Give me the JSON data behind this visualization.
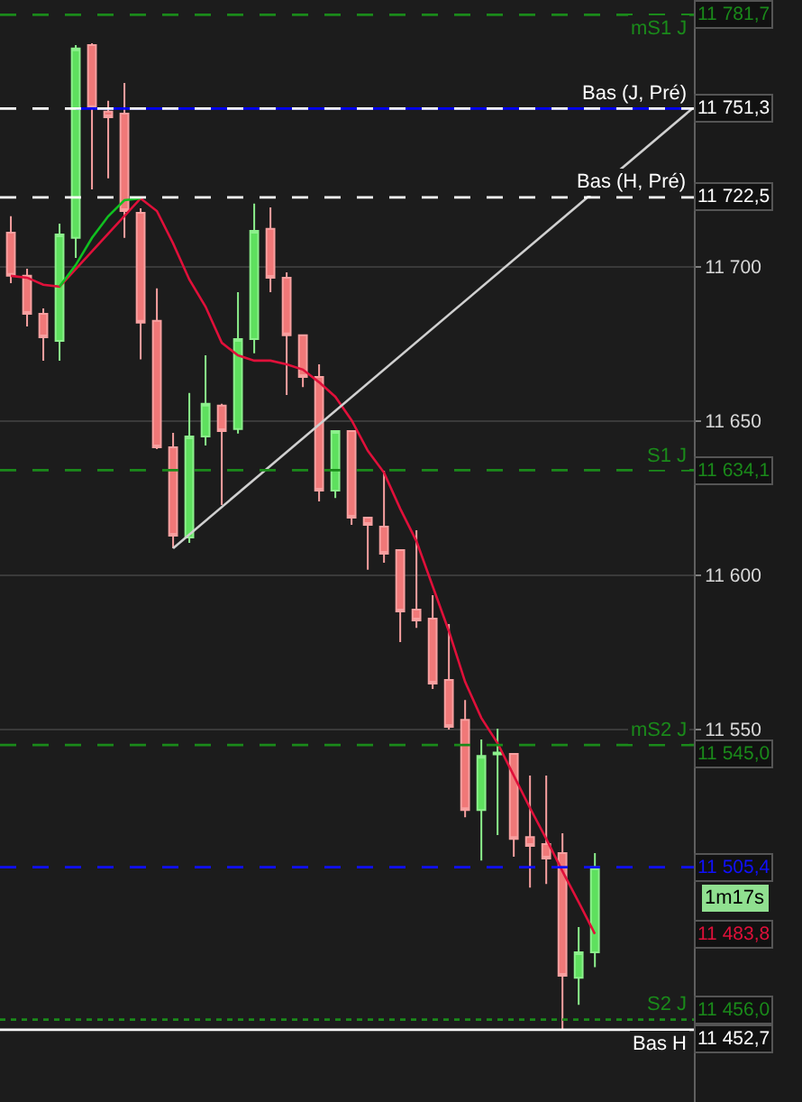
{
  "chart_data": {
    "type": "candlestick",
    "categories": [
      null,
      null,
      null,
      null,
      null,
      null,
      null,
      null,
      null,
      null,
      null,
      null,
      null,
      null,
      null,
      null,
      null,
      null,
      null,
      null,
      null,
      null,
      null,
      null,
      null,
      null,
      null,
      null,
      null,
      null,
      null,
      null,
      null,
      null,
      null,
      null,
      null,
      null,
      null,
      null,
      null,
      null,
      null
    ],
    "ohlc": [
      [
        11711.1,
        11716.4,
        11694.7,
        11697.1
      ],
      [
        11697.1,
        11699.4,
        11680.7,
        11684.8
      ],
      [
        11684.8,
        11686.5,
        11669.6,
        11677.2
      ],
      [
        11676.0,
        11714.0,
        11669.6,
        11710.5
      ],
      [
        11709.4,
        11771.9,
        11702.9,
        11770.8
      ],
      [
        11771.9,
        11772.5,
        11725.1,
        11751.5
      ],
      [
        11750.3,
        11753.8,
        11728.7,
        11748.5
      ],
      [
        11749.7,
        11759.6,
        11709.4,
        11718.1
      ],
      [
        11717.5,
        11719.0,
        11670.0,
        11681.9
      ],
      [
        11682.5,
        11693.0,
        11640.9,
        11641.5
      ],
      [
        11641.5,
        11646.2,
        11608.8,
        11612.9
      ],
      [
        11612.3,
        11659.1,
        11610.5,
        11645.0
      ],
      [
        11645.0,
        11671.3,
        11642.1,
        11655.6
      ],
      [
        11655.0,
        11655.6,
        11622.8,
        11646.8
      ],
      [
        11647.4,
        11691.8,
        11646.0,
        11676.6
      ],
      [
        11676.6,
        11720.5,
        11672.0,
        11711.7
      ],
      [
        11712.3,
        11719.3,
        11691.8,
        11696.5
      ],
      [
        11696.5,
        11698.2,
        11658.5,
        11677.8
      ],
      [
        11677.8,
        11678.0,
        11661.0,
        11664.3
      ],
      [
        11664.3,
        11668.4,
        11624.0,
        11627.5
      ],
      [
        11627.5,
        11646.8,
        11625.1,
        11646.8
      ],
      [
        11646.8,
        11647.0,
        11616.4,
        11618.7
      ],
      [
        11618.7,
        11618.7,
        11601.8,
        11616.4
      ],
      [
        11615.8,
        11633.9,
        11604.1,
        11607.0
      ],
      [
        11608.2,
        11608.2,
        11578.4,
        11588.3
      ],
      [
        11588.9,
        11614.6,
        11583.0,
        11585.4
      ],
      [
        11586.0,
        11593.6,
        11563.2,
        11564.9
      ],
      [
        11566.1,
        11584.2,
        11550.0,
        11550.9
      ],
      [
        11553.2,
        11559.6,
        11521.6,
        11523.9
      ],
      [
        11523.9,
        11546.8,
        11507.6,
        11541.5
      ],
      [
        11542.0,
        11550.3,
        11515.8,
        11542.6
      ],
      [
        11542.1,
        11542.1,
        11508.8,
        11514.6
      ],
      [
        11515.2,
        11535.1,
        11498.8,
        11512.3
      ],
      [
        11512.9,
        11535.1,
        11500.0,
        11508.2
      ],
      [
        11510.0,
        11516.4,
        11452.7,
        11470.2
      ],
      [
        11469.6,
        11486.0,
        11460.8,
        11477.8
      ],
      [
        11477.8,
        11510.0,
        11473.0,
        11505.4
      ],
      null,
      null,
      null,
      null,
      null,
      null
    ],
    "series": [
      {
        "type": "line",
        "color": "#e0103a",
        "values": [
          11697.1,
          11696.5,
          11694.2,
          11693.6,
          null,
          null,
          null,
          null,
          11722.2,
          11718.1,
          11707.6,
          11695.9,
          11687.1,
          11675.4,
          11671.3,
          11669.6,
          11669.6,
          11668.4,
          11666.7,
          11662.6,
          11657.9,
          11650.3,
          11640.4,
          11633.3,
          11621.6,
          11611.1,
          11596.5,
          11581.9,
          11565.5,
          11553.8,
          11545.6,
          11535.1,
          11524.6,
          11514.6,
          11504.1,
          11494.1,
          11483.8,
          null,
          null,
          null,
          null,
          null,
          null
        ]
      },
      {
        "type": "line",
        "color": "#10c020",
        "values": [
          null,
          null,
          null,
          11693.6,
          11700.6,
          11709.4,
          11716.4,
          11721.6,
          11722.2,
          null,
          null,
          null,
          null,
          null,
          null,
          null,
          null,
          null,
          null,
          null,
          null,
          null,
          null,
          null,
          null,
          null,
          null,
          null,
          null,
          null,
          null,
          null,
          null,
          null,
          null,
          null,
          null,
          null,
          null,
          null,
          null,
          null,
          null
        ]
      },
      {
        "type": "line",
        "color": "#0000ff",
        "values": [
          null,
          null,
          null,
          null,
          11751.3,
          11751.3,
          11751.3,
          11751.3,
          11751.3,
          11751.3,
          11751.3,
          11751.3,
          11751.3,
          11751.3,
          11751.3,
          11751.3,
          11751.3,
          11751.3,
          11751.3,
          11751.3,
          11751.3,
          11751.3,
          11751.3,
          11751.3,
          11751.3,
          11751.3,
          11751.3,
          11751.3,
          11751.3,
          11751.3,
          11751.3,
          11751.3,
          11751.3,
          11751.3,
          11751.3,
          11751.3,
          11751.3,
          11751.3,
          11751.3,
          11751.3,
          11751.3,
          11751.3,
          11751.3
        ]
      },
      {
        "type": "line",
        "color": "#d0d0d0",
        "values": [
          null,
          null,
          null,
          null,
          null,
          null,
          null,
          null,
          null,
          null,
          11608.8,
          null,
          null,
          null,
          null,
          null,
          null,
          null,
          null,
          null,
          null,
          null,
          null,
          null,
          null,
          null,
          null,
          null,
          null,
          null,
          null,
          null,
          null,
          null,
          null,
          null,
          null,
          null,
          null,
          null,
          null,
          null,
          11751.3
        ]
      }
    ],
    "ylim": [
      11429.3,
      11786.5
    ],
    "yticks": [
      {
        "value": 11700,
        "label": "11 700"
      },
      {
        "value": 11650,
        "label": "11 650"
      },
      {
        "value": 11600,
        "label": "11 600"
      },
      {
        "value": 11550,
        "label": "11 550"
      }
    ],
    "ref_lines": [
      {
        "axis": "y",
        "value": 11781.7,
        "label": "11 781,7",
        "color": "#1a8a1a",
        "line_style": "dashed"
      },
      {
        "axis": "y",
        "value": 11751.3,
        "label": "11 751,3",
        "color": "#ffffff",
        "line_style": "dashed"
      },
      {
        "axis": "y",
        "value": 11722.5,
        "label": "11 722,5",
        "color": "#ffffff",
        "line_style": "dashed"
      },
      {
        "axis": "y",
        "value": 11634.1,
        "label": "11 634,1",
        "color": "#1a8a1a",
        "line_style": "dashed"
      },
      {
        "axis": "y",
        "value": 11545.0,
        "label": "11 545,0",
        "color": "#1a8a1a",
        "line_style": "dashed"
      },
      {
        "axis": "y",
        "value": 11505.4,
        "label": "11 505,4",
        "color": "#1010ff",
        "line_style": "dashed"
      },
      {
        "axis": "y",
        "value": 11456.0,
        "label": "11 456,0",
        "color": "#1a8a1a",
        "line_style": "dotted"
      },
      {
        "axis": "y",
        "value": 11452.7,
        "label": "11 452,7",
        "color": "#ffffff",
        "line_style": "solid"
      }
    ],
    "annotations": [
      {
        "text": "mS1 J",
        "y": 11781.7
      },
      {
        "text": "Bas (J, Pré)",
        "y": 11751.3
      },
      {
        "text": "Bas (H, Pré)",
        "y": 11722.5
      },
      {
        "text": "S1 J",
        "y": 11634.1
      },
      {
        "text": "mS2 J",
        "y": 11545.0
      },
      {
        "text": "S2 J",
        "y": 11456.0
      },
      {
        "text": "Bas H",
        "y": 11452.7
      },
      {
        "text": "11 483,8",
        "y": 11483.8
      },
      "1m17s"
    ],
    "grid": "y"
  }
}
